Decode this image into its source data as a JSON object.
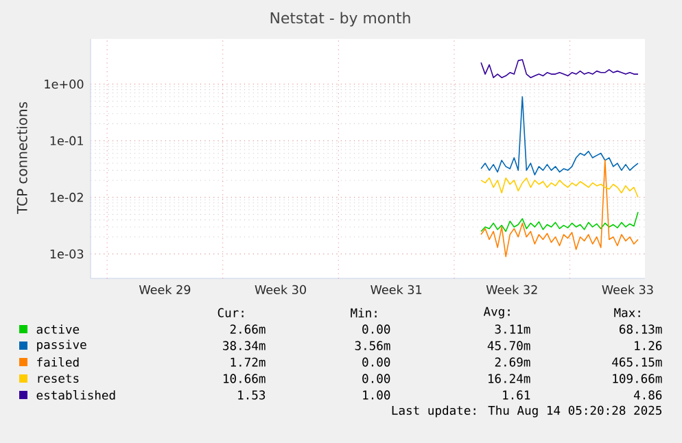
{
  "chart_data": {
    "type": "line",
    "title": "Netstat - by month",
    "ylabel": "TCP connections",
    "log": "y",
    "grid": true,
    "legend": "bottom",
    "xlim": [
      "2025-07-12",
      "2025-08-14T13:00"
    ],
    "ylim": [
      0.00037,
      6.3
    ],
    "xticks": [
      {
        "value": "2025-07-13",
        "label": null
      },
      {
        "value": "2025-07-20",
        "label": null
      },
      {
        "value": "2025-07-27",
        "label": null
      },
      {
        "value": "2025-08-03",
        "label": null
      },
      {
        "value": "2025-08-10",
        "label": null
      },
      {
        "value": "2025-07-16T12:00",
        "label": "Week 29"
      },
      {
        "value": "2025-07-23T12:00",
        "label": "Week 30"
      },
      {
        "value": "2025-07-30T12:00",
        "label": "Week 31"
      },
      {
        "value": "2025-08-06T12:00",
        "label": "Week 32"
      },
      {
        "value": "2025-08-13T12:00",
        "label": "Week 33"
      }
    ],
    "yticks": [
      {
        "value": 0.001,
        "label": "1e-03"
      },
      {
        "value": 0.01,
        "label": "1e-02"
      },
      {
        "value": 0.1,
        "label": "1e-01"
      },
      {
        "value": 1,
        "label": "1e+00"
      }
    ],
    "x": [
      "2025-08-04T15:00",
      "2025-08-04T21:00",
      "2025-08-05T03:00",
      "2025-08-05T09:00",
      "2025-08-05T15:00",
      "2025-08-05T21:00",
      "2025-08-06T03:00",
      "2025-08-06T09:00",
      "2025-08-06T15:00",
      "2025-08-06T21:00",
      "2025-08-07T03:00",
      "2025-08-07T09:00",
      "2025-08-07T15:00",
      "2025-08-07T21:00",
      "2025-08-08T03:00",
      "2025-08-08T09:00",
      "2025-08-08T15:00",
      "2025-08-08T21:00",
      "2025-08-09T03:00",
      "2025-08-09T09:00",
      "2025-08-09T15:00",
      "2025-08-09T21:00",
      "2025-08-10T03:00",
      "2025-08-10T09:00",
      "2025-08-10T15:00",
      "2025-08-10T21:00",
      "2025-08-11T03:00",
      "2025-08-11T09:00",
      "2025-08-11T15:00",
      "2025-08-11T21:00",
      "2025-08-12T03:00",
      "2025-08-12T09:00",
      "2025-08-12T15:00",
      "2025-08-12T21:00",
      "2025-08-13T03:00",
      "2025-08-13T09:00",
      "2025-08-13T15:00",
      "2025-08-13T21:00",
      "2025-08-14T03:00"
    ],
    "series": [
      {
        "name": "active",
        "color": "#00cc00",
        "values": [
          0.0025,
          0.003,
          0.0028,
          0.0035,
          0.0027,
          0.0032,
          0.0025,
          0.0038,
          0.003,
          0.0033,
          0.0042,
          0.0028,
          0.0035,
          0.003,
          0.0037,
          0.0027,
          0.0033,
          0.003,
          0.0036,
          0.0028,
          0.0032,
          0.0029,
          0.0035,
          0.003,
          0.0033,
          0.0027,
          0.0036,
          0.003,
          0.0034,
          0.0028,
          0.0035,
          0.003,
          0.0033,
          0.0029,
          0.0036,
          0.003,
          0.0034,
          0.0031,
          0.0055
        ]
      },
      {
        "name": "passive",
        "color": "#0066b3",
        "values": [
          0.032,
          0.04,
          0.03,
          0.038,
          0.028,
          0.045,
          0.035,
          0.032,
          0.05,
          0.03,
          0.6,
          0.03,
          0.04,
          0.025,
          0.035,
          0.03,
          0.038,
          0.03,
          0.035,
          0.028,
          0.032,
          0.03,
          0.035,
          0.05,
          0.06,
          0.055,
          0.065,
          0.05,
          0.055,
          0.06,
          0.045,
          0.05,
          0.035,
          0.04,
          0.03,
          0.038,
          0.03,
          0.035,
          0.04
        ]
      },
      {
        "name": "failed",
        "color": "#ff8000",
        "values": [
          0.0022,
          0.0028,
          0.0018,
          0.0025,
          0.0013,
          0.003,
          0.0009,
          0.0022,
          0.0028,
          0.002,
          0.0035,
          0.002,
          0.0025,
          0.0015,
          0.0022,
          0.0018,
          0.0023,
          0.0016,
          0.002,
          0.0014,
          0.0022,
          0.0019,
          0.0024,
          0.0012,
          0.002,
          0.0017,
          0.0022,
          0.0015,
          0.002,
          0.0013,
          0.045,
          0.0018,
          0.002,
          0.0014,
          0.0022,
          0.0017,
          0.002,
          0.0015,
          0.0018
        ]
      },
      {
        "name": "resets",
        "color": "#ffcc00",
        "values": [
          0.02,
          0.018,
          0.022,
          0.015,
          0.02,
          0.012,
          0.022,
          0.017,
          0.02,
          0.013,
          0.018,
          0.022,
          0.015,
          0.02,
          0.017,
          0.019,
          0.015,
          0.018,
          0.016,
          0.02,
          0.017,
          0.015,
          0.018,
          0.016,
          0.019,
          0.017,
          0.015,
          0.018,
          0.016,
          0.017,
          0.015,
          0.014,
          0.017,
          0.015,
          0.012,
          0.016,
          0.013,
          0.015,
          0.01
        ]
      },
      {
        "name": "established",
        "color": "#330099",
        "values": [
          2.4,
          1.5,
          2.2,
          1.3,
          1.5,
          1.3,
          1.4,
          1.6,
          1.5,
          2.6,
          2.7,
          1.5,
          1.3,
          1.4,
          1.5,
          1.4,
          1.6,
          1.5,
          1.5,
          1.6,
          1.5,
          1.4,
          1.6,
          1.5,
          1.7,
          1.5,
          1.6,
          1.5,
          1.7,
          1.6,
          1.6,
          1.8,
          1.6,
          1.7,
          1.6,
          1.5,
          1.6,
          1.5,
          1.5
        ]
      }
    ],
    "annotations": [
      "Cur:",
      "Min:",
      "Avg:",
      "Max:",
      "2.66m",
      "0.00",
      "3.11m",
      "68.13m",
      "38.34m",
      "3.56m",
      "45.70m",
      "1.26",
      "1.72m",
      "0.00",
      "2.69m",
      "465.15m",
      "10.66m",
      "0.00",
      "16.24m",
      "109.66m",
      "1.53",
      "1.00",
      "1.61",
      "4.86",
      "Last update: Thu Aug 14 05:20:28 2025"
    ]
  }
}
